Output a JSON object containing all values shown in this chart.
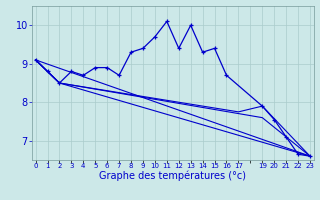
{
  "xlabel": "Graphe des températures (°c)",
  "background_color": "#cce8e8",
  "grid_color": "#aacccc",
  "line_color": "#0000cc",
  "main_x": [
    0,
    1,
    2,
    3,
    4,
    5,
    6,
    7,
    8,
    9,
    10,
    11,
    12,
    13,
    14,
    15,
    16,
    19,
    20,
    21,
    22,
    23
  ],
  "main_y": [
    9.1,
    8.8,
    8.5,
    8.8,
    8.7,
    8.9,
    8.9,
    8.7,
    9.3,
    9.4,
    9.7,
    10.1,
    9.4,
    10.0,
    9.3,
    9.4,
    8.7,
    7.9,
    7.55,
    7.1,
    6.65,
    6.6
  ],
  "straight_lines": [
    {
      "x": [
        0,
        23
      ],
      "y": [
        9.1,
        6.6
      ]
    },
    {
      "x": [
        0,
        2,
        23
      ],
      "y": [
        9.1,
        8.5,
        6.6
      ]
    },
    {
      "x": [
        0,
        2,
        19,
        23
      ],
      "y": [
        9.1,
        8.5,
        7.6,
        6.6
      ]
    },
    {
      "x": [
        0,
        2,
        17,
        19,
        23
      ],
      "y": [
        9.1,
        8.5,
        7.75,
        7.9,
        6.6
      ]
    }
  ],
  "ylim": [
    6.5,
    10.5
  ],
  "yticks": [
    7,
    8,
    9,
    10
  ],
  "xlim": [
    -0.3,
    23.3
  ],
  "xtick_positions": [
    0,
    1,
    2,
    3,
    4,
    5,
    6,
    7,
    8,
    9,
    10,
    11,
    12,
    13,
    14,
    15,
    16,
    17,
    18,
    19,
    20,
    21,
    22,
    23
  ],
  "xtick_labels": [
    "0",
    "1",
    "2",
    "3",
    "4",
    "5",
    "6",
    "7",
    "8",
    "9",
    "10",
    "11",
    "12",
    "13",
    "14",
    "15",
    "16",
    "17",
    "",
    "19",
    "20",
    "21",
    "22",
    "23"
  ]
}
